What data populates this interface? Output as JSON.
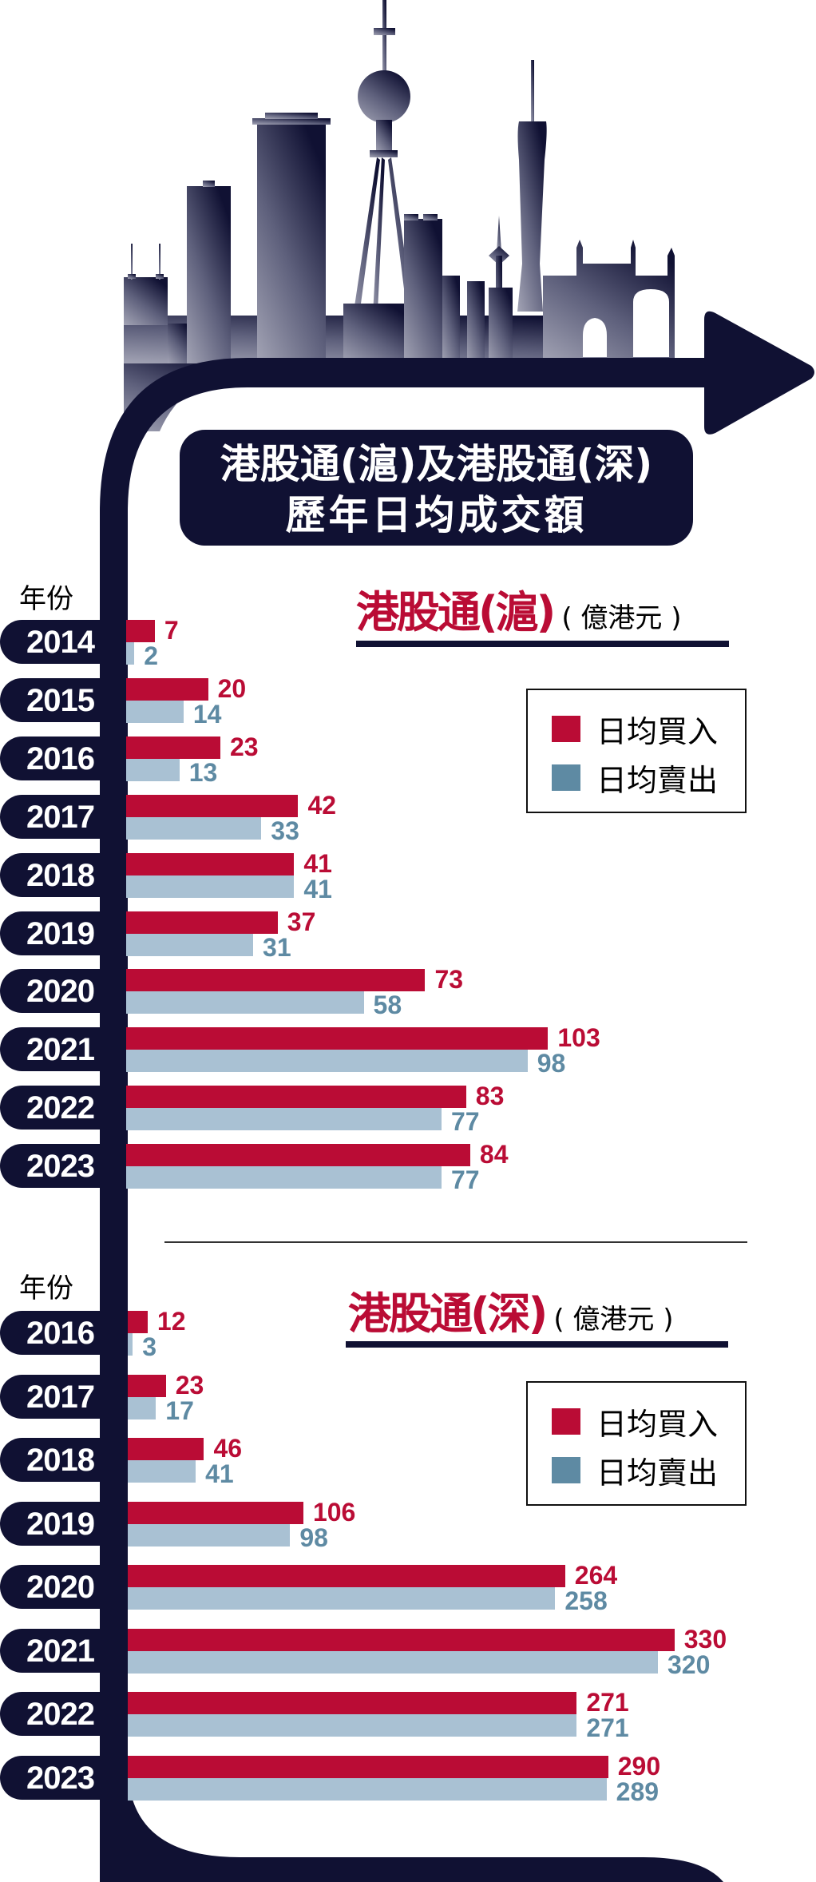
{
  "title": {
    "line1": "港股通(滬)及港股通(深)",
    "line2": "歷年日均成交額"
  },
  "colors": {
    "buy": "#BA0C35",
    "sell_bar": "#A9C1D3",
    "sell_label": "#5E8AA3",
    "navy": "#101133"
  },
  "year_axis_label": "年份",
  "legend": {
    "buy": "日均買入",
    "sell": "日均賣出"
  },
  "chart_data": [
    {
      "type": "bar",
      "orientation": "horizontal",
      "title": "港股通(滬)",
      "unit": "( 億港元 )",
      "ylabel": "年份",
      "categories": [
        "2014",
        "2015",
        "2016",
        "2017",
        "2018",
        "2019",
        "2020",
        "2021",
        "2022",
        "2023"
      ],
      "series": [
        {
          "name": "日均買入",
          "values": [
            7,
            20,
            23,
            42,
            41,
            37,
            73,
            103,
            83,
            84
          ]
        },
        {
          "name": "日均賣出",
          "values": [
            2,
            14,
            13,
            33,
            41,
            31,
            58,
            98,
            77,
            77
          ]
        }
      ],
      "legend": "top-right",
      "grid": false
    },
    {
      "type": "bar",
      "orientation": "horizontal",
      "title": "港股通(深)",
      "unit": "( 億港元 )",
      "ylabel": "年份",
      "categories": [
        "2016",
        "2017",
        "2018",
        "2019",
        "2020",
        "2021",
        "2022",
        "2023"
      ],
      "series": [
        {
          "name": "日均買入",
          "values": [
            12,
            23,
            46,
            106,
            264,
            330,
            271,
            290
          ]
        },
        {
          "name": "日均賣出",
          "values": [
            3,
            17,
            41,
            98,
            258,
            320,
            271,
            289
          ]
        }
      ],
      "legend": "top-right",
      "grid": false
    }
  ]
}
